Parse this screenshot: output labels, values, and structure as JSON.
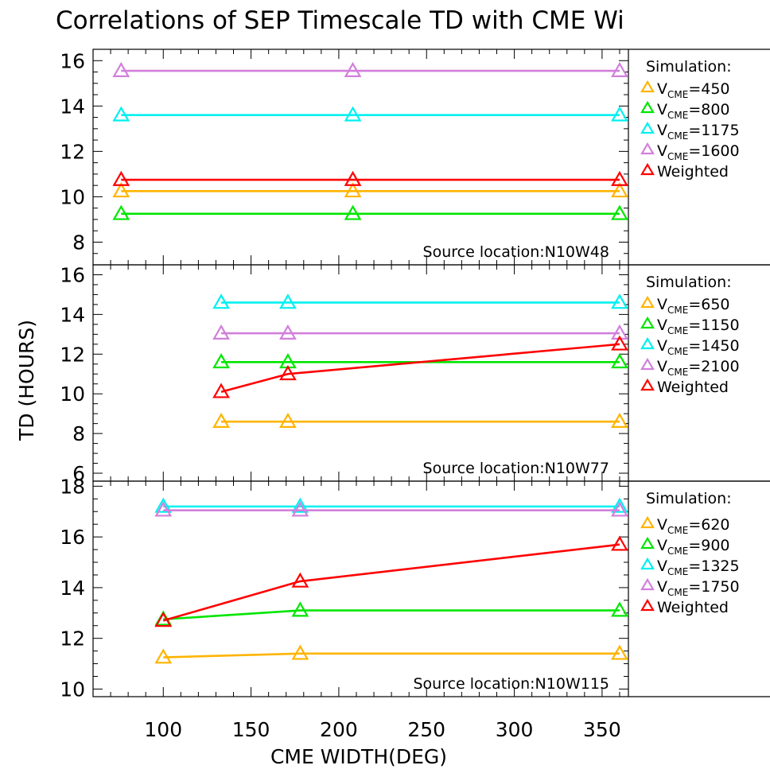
{
  "title": "Correlations of SEP Timescale TD with CME Wi",
  "xlabel": "CME WIDTH(DEG)",
  "ylabel": "TD (HOURS)",
  "colors": {
    "orange": "#FFB400",
    "green": "#00E600",
    "cyan": "#00F0F0",
    "violet": "#D27FDC",
    "red": "#FF0000"
  },
  "chart_data": [
    {
      "type": "line",
      "panel": "top",
      "source_label": "Source location:N10W48",
      "xlim": [
        60,
        365
      ],
      "ylim": [
        7,
        16.5
      ],
      "yticks": [
        8,
        10,
        12,
        14,
        16
      ],
      "x_tick_labels": [
        "100",
        "150",
        "200",
        "250",
        "300",
        "350"
      ],
      "legend_title": "Simulation:",
      "series": [
        {
          "color": "orange",
          "v": "450",
          "x": [
            76,
            208,
            360
          ],
          "y": [
            10.25,
            10.25,
            10.25
          ]
        },
        {
          "color": "green",
          "v": "800",
          "x": [
            76,
            208,
            360
          ],
          "y": [
            9.25,
            9.25,
            9.25
          ]
        },
        {
          "color": "cyan",
          "v": "1175",
          "x": [
            76,
            208,
            360
          ],
          "y": [
            13.6,
            13.6,
            13.6
          ]
        },
        {
          "color": "violet",
          "v": "1600",
          "x": [
            76,
            208,
            360
          ],
          "y": [
            15.55,
            15.55,
            15.55
          ]
        },
        {
          "color": "red",
          "name": "Weighted",
          "x": [
            76,
            208,
            360
          ],
          "y": [
            10.75,
            10.75,
            10.75
          ]
        }
      ]
    },
    {
      "type": "line",
      "panel": "middle",
      "source_label": "Source location:N10W77",
      "xlim": [
        60,
        365
      ],
      "ylim": [
        5.6,
        16.5
      ],
      "yticks": [
        6,
        8,
        10,
        12,
        14,
        16
      ],
      "x_tick_labels": [
        "100",
        "150",
        "200",
        "250",
        "300",
        "350"
      ],
      "legend_title": "Simulation:",
      "series": [
        {
          "color": "orange",
          "v": "650",
          "x": [
            133,
            171,
            360
          ],
          "y": [
            8.6,
            8.6,
            8.6
          ]
        },
        {
          "color": "green",
          "v": "1150",
          "x": [
            133,
            171,
            360
          ],
          "y": [
            11.6,
            11.6,
            11.6
          ]
        },
        {
          "color": "cyan",
          "v": "1450",
          "x": [
            133,
            171,
            360
          ],
          "y": [
            14.6,
            14.6,
            14.6
          ]
        },
        {
          "color": "violet",
          "v": "2100",
          "x": [
            133,
            171,
            360
          ],
          "y": [
            13.05,
            13.05,
            13.05
          ]
        },
        {
          "color": "red",
          "name": "Weighted",
          "x": [
            133,
            171,
            360
          ],
          "y": [
            10.1,
            11.0,
            12.5
          ]
        }
      ]
    },
    {
      "type": "line",
      "panel": "bottom",
      "source_label": "Source location:N10W115",
      "xlim": [
        60,
        365
      ],
      "ylim": [
        9.7,
        18.2
      ],
      "yticks": [
        10,
        12,
        14,
        16,
        18
      ],
      "x_tick_labels": [
        "100",
        "150",
        "200",
        "250",
        "300",
        "350"
      ],
      "legend_title": "Simulation:",
      "series": [
        {
          "color": "orange",
          "v": "620",
          "x": [
            100,
            178,
            360
          ],
          "y": [
            11.25,
            11.4,
            11.4
          ]
        },
        {
          "color": "green",
          "v": "900",
          "x": [
            100,
            178,
            360
          ],
          "y": [
            12.75,
            13.1,
            13.1
          ]
        },
        {
          "color": "cyan",
          "v": "1325",
          "x": [
            100,
            178,
            360
          ],
          "y": [
            17.2,
            17.2,
            17.2
          ]
        },
        {
          "color": "violet",
          "v": "1750",
          "x": [
            100,
            178,
            360
          ],
          "y": [
            17.05,
            17.05,
            17.05
          ]
        },
        {
          "color": "red",
          "name": "Weighted",
          "x": [
            100,
            178,
            360
          ],
          "y": [
            12.7,
            14.25,
            15.7
          ]
        }
      ]
    }
  ]
}
